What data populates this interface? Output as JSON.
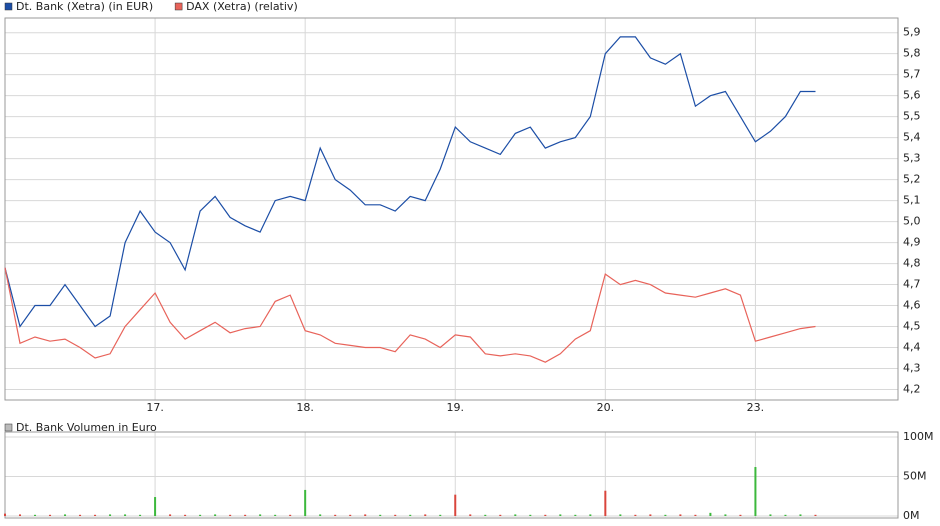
{
  "chart_data": [
    {
      "type": "line",
      "legend": "top-left",
      "grid": true,
      "x": [
        0,
        0.1,
        0.2,
        0.3,
        0.4,
        0.5,
        0.6,
        0.7,
        0.8,
        0.9,
        1.0,
        1.1,
        1.2,
        1.3,
        1.4,
        1.5,
        1.6,
        1.7,
        1.8,
        1.9,
        2.0,
        2.1,
        2.2,
        2.3,
        2.4,
        2.5,
        2.6,
        2.7,
        2.8,
        2.9,
        3.0,
        3.1,
        3.2,
        3.3,
        3.4,
        3.5,
        3.6,
        3.7,
        3.8,
        3.9,
        4.0,
        4.1,
        4.2,
        4.3,
        4.4,
        4.5,
        4.6,
        4.7,
        4.8,
        4.9,
        5.0,
        5.1,
        5.2,
        5.3,
        5.4
      ],
      "xlim": [
        0,
        5.95
      ],
      "xticks": [
        {
          "value": 1,
          "label": "17."
        },
        {
          "value": 2,
          "label": "18."
        },
        {
          "value": 3,
          "label": "19."
        },
        {
          "value": 4,
          "label": "20."
        },
        {
          "value": 5,
          "label": "23."
        }
      ],
      "ylim": [
        4.15,
        5.97
      ],
      "yticks": [
        {
          "value": 4.2,
          "label": "4,2"
        },
        {
          "value": 4.3,
          "label": "4,3"
        },
        {
          "value": 4.4,
          "label": "4,4"
        },
        {
          "value": 4.5,
          "label": "4,5"
        },
        {
          "value": 4.6,
          "label": "4,6"
        },
        {
          "value": 4.7,
          "label": "4,7"
        },
        {
          "value": 4.8,
          "label": "4,8"
        },
        {
          "value": 4.9,
          "label": "4,9"
        },
        {
          "value": 5.0,
          "label": "5,0"
        },
        {
          "value": 5.1,
          "label": "5,1"
        },
        {
          "value": 5.2,
          "label": "5,2"
        },
        {
          "value": 5.3,
          "label": "5,3"
        },
        {
          "value": 5.4,
          "label": "5,4"
        },
        {
          "value": 5.5,
          "label": "5,5"
        },
        {
          "value": 5.6,
          "label": "5,6"
        },
        {
          "value": 5.7,
          "label": "5,7"
        },
        {
          "value": 5.8,
          "label": "5,8"
        },
        {
          "value": 5.9,
          "label": "5,9"
        }
      ],
      "series": [
        {
          "name": "Dt. Bank (Xetra) (in EUR)",
          "color": "#1c4ea6",
          "values": [
            4.78,
            4.5,
            4.6,
            4.6,
            4.7,
            4.6,
            4.5,
            4.55,
            4.9,
            5.05,
            4.95,
            4.9,
            4.77,
            5.05,
            5.12,
            5.02,
            4.98,
            4.95,
            5.1,
            5.12,
            5.1,
            5.35,
            5.2,
            5.15,
            5.08,
            5.08,
            5.05,
            5.12,
            5.1,
            5.25,
            5.45,
            5.38,
            5.35,
            5.32,
            5.42,
            5.45,
            5.35,
            5.38,
            5.4,
            5.5,
            5.8,
            5.88,
            5.88,
            5.78,
            5.75,
            5.8,
            5.55,
            5.6,
            5.62,
            5.5,
            5.38,
            5.43,
            5.5,
            5.62,
            5.62
          ]
        },
        {
          "name": "DAX (Xetra) (relativ)",
          "color": "#e8635a",
          "values": [
            4.78,
            4.42,
            4.45,
            4.43,
            4.44,
            4.4,
            4.35,
            4.37,
            4.5,
            4.58,
            4.66,
            4.52,
            4.44,
            4.48,
            4.52,
            4.47,
            4.49,
            4.5,
            4.62,
            4.65,
            4.48,
            4.46,
            4.42,
            4.41,
            4.4,
            4.4,
            4.38,
            4.46,
            4.44,
            4.4,
            4.46,
            4.45,
            4.37,
            4.36,
            4.37,
            4.36,
            4.33,
            4.37,
            4.44,
            4.48,
            4.75,
            4.7,
            4.72,
            4.7,
            4.66,
            4.65,
            4.64,
            4.66,
            4.68,
            4.65,
            4.43,
            4.45,
            4.47,
            4.49,
            4.5
          ]
        }
      ]
    },
    {
      "type": "bar",
      "title": "Dt. Bank Volumen in Euro",
      "grid": true,
      "x": [
        0,
        0.1,
        0.2,
        0.3,
        0.4,
        0.5,
        0.6,
        0.7,
        0.8,
        0.9,
        1.0,
        1.1,
        1.2,
        1.3,
        1.4,
        1.5,
        1.6,
        1.7,
        1.8,
        1.9,
        2.0,
        2.1,
        2.2,
        2.3,
        2.4,
        2.5,
        2.6,
        2.7,
        2.8,
        2.9,
        3.0,
        3.1,
        3.2,
        3.3,
        3.4,
        3.5,
        3.6,
        3.7,
        3.8,
        3.9,
        4.0,
        4.1,
        4.2,
        4.3,
        4.4,
        4.5,
        4.6,
        4.7,
        4.8,
        4.9,
        5.0,
        5.1,
        5.2,
        5.3,
        5.4
      ],
      "xlim": [
        0,
        5.95
      ],
      "xticks": [
        1,
        2,
        3,
        4,
        5
      ],
      "ylim": [
        0,
        100
      ],
      "yticks": [
        {
          "value": 0,
          "label": "0M"
        },
        {
          "value": 50,
          "label": "50M"
        },
        {
          "value": 100,
          "label": "100M"
        }
      ],
      "values": [
        3,
        2,
        1.5,
        1.5,
        2,
        1.5,
        1.5,
        2,
        2,
        1.5,
        24,
        2,
        1.5,
        1.5,
        2,
        1.5,
        1.5,
        2,
        1.5,
        1.5,
        33,
        2,
        1.5,
        1.5,
        2,
        1.5,
        1.5,
        1.5,
        2,
        1.5,
        27,
        2,
        1.5,
        1.5,
        2,
        1.5,
        1.5,
        2,
        1.5,
        2,
        32,
        2,
        1.5,
        2,
        1.5,
        2,
        1.5,
        4,
        2,
        1.5,
        62,
        2,
        1.5,
        2,
        1.5
      ],
      "colors": [
        "#d9453c",
        "#d9453c",
        "#3cb83c",
        "#d9453c",
        "#3cb83c",
        "#d9453c",
        "#d9453c",
        "#3cb83c",
        "#3cb83c",
        "#3cb83c",
        "#3cb83c",
        "#d9453c",
        "#d9453c",
        "#3cb83c",
        "#3cb83c",
        "#d9453c",
        "#d9453c",
        "#3cb83c",
        "#3cb83c",
        "#d9453c",
        "#3cb83c",
        "#3cb83c",
        "#d9453c",
        "#d9453c",
        "#d9453c",
        "#3cb83c",
        "#d9453c",
        "#3cb83c",
        "#d9453c",
        "#3cb83c",
        "#d9453c",
        "#d9453c",
        "#3cb83c",
        "#d9453c",
        "#3cb83c",
        "#3cb83c",
        "#d9453c",
        "#3cb83c",
        "#3cb83c",
        "#3cb83c",
        "#d9453c",
        "#3cb83c",
        "#d9453c",
        "#d9453c",
        "#3cb83c",
        "#d9453c",
        "#d9453c",
        "#3cb83c",
        "#3cb83c",
        "#d9453c",
        "#3cb83c",
        "#3cb83c",
        "#3cb83c",
        "#3cb83c",
        "#d9453c"
      ]
    }
  ]
}
